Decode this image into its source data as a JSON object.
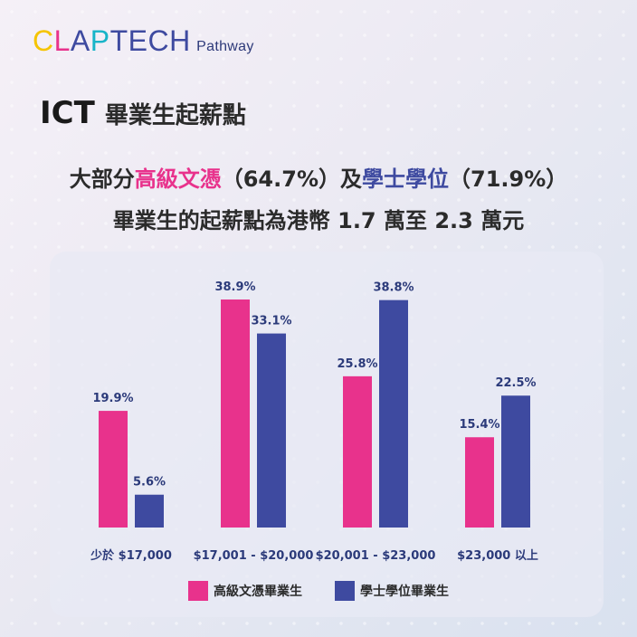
{
  "logo": {
    "letters": [
      {
        "ch": "C",
        "color": "#f5c400"
      },
      {
        "ch": "L",
        "color": "#e8328c"
      },
      {
        "ch": "A",
        "color": "#3e4aa0"
      },
      {
        "ch": "P",
        "color": "#18b4c8"
      },
      {
        "ch": "T",
        "color": "#3e4aa0"
      },
      {
        "ch": "E",
        "color": "#3e4aa0"
      },
      {
        "ch": "C",
        "color": "#3e4aa0"
      },
      {
        "ch": "H",
        "color": "#3e4aa0"
      }
    ],
    "text": "CLAPTECH",
    "sub": "Pathway"
  },
  "title": {
    "ict": "ICT",
    "rest": "畢業生起薪點"
  },
  "headline": {
    "line1_a": "大部分",
    "line1_b": "高級文憑",
    "line1_c": "（64.7%）及",
    "line1_d": "學士學位",
    "line1_e": "（71.9%）",
    "line2": "畢業生的起薪點為港幣 1.7 萬至 2.3 萬元"
  },
  "colors": {
    "pink": "#e8328c",
    "blue": "#3e4aa0"
  },
  "chart_data": {
    "type": "bar",
    "categories": [
      "少於 $17,000",
      "$17,001 - $20,000",
      "$20,001 - $23,000",
      "$23,000 以上"
    ],
    "series": [
      {
        "name": "高級文憑畢業生",
        "values": [
          19.9,
          38.9,
          25.8,
          15.4
        ],
        "labels": [
          "19.9%",
          "38.9%",
          "25.8%",
          "15.4%"
        ],
        "color": "#e8328c"
      },
      {
        "name": "學士學位畢業生",
        "values": [
          5.6,
          33.1,
          38.8,
          22.5
        ],
        "labels": [
          "5.6%",
          "33.1%",
          "38.8%",
          "22.5%"
        ],
        "color": "#3e4aa0"
      }
    ],
    "ylim": [
      0,
      40
    ],
    "grid": false,
    "legend": "bottom"
  }
}
